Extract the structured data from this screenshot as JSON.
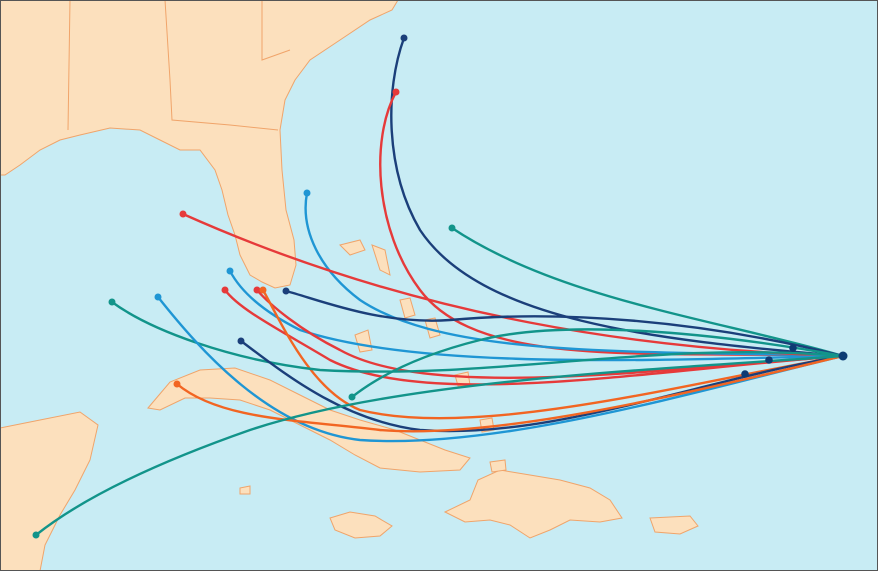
{
  "map": {
    "water_color": "#c8ecf4",
    "land_color": "#fce0bd",
    "land_border_color": "#f0a46a",
    "frame_color": "#555555"
  },
  "track_colors": {
    "navy": "#1b3f7a",
    "red": "#e63a3a",
    "teal": "#12948a",
    "blue": "#1f96d4",
    "orange": "#f26522",
    "marker": "#0d3b73"
  },
  "tracks": [
    {
      "color": "navy"
    },
    {
      "color": "red"
    },
    {
      "color": "teal"
    },
    {
      "color": "blue"
    },
    {
      "color": "red"
    },
    {
      "color": "blue"
    },
    {
      "color": "red"
    },
    {
      "color": "red"
    },
    {
      "color": "orange"
    },
    {
      "color": "navy"
    },
    {
      "color": "teal"
    },
    {
      "color": "blue"
    },
    {
      "color": "navy"
    },
    {
      "color": "orange"
    },
    {
      "color": "teal"
    },
    {
      "color": "teal"
    }
  ]
}
